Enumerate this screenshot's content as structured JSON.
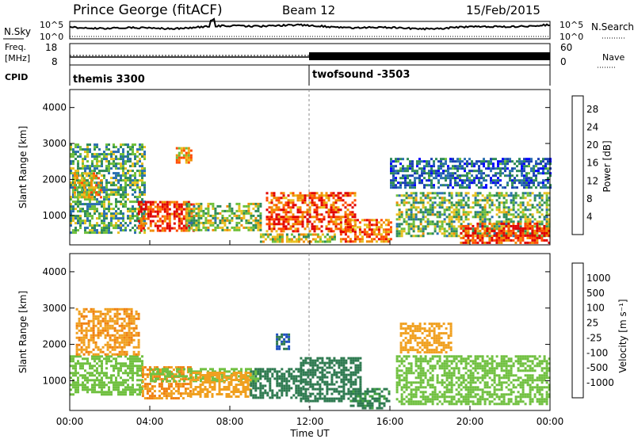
{
  "header": {
    "title": "Prince George (fitACF)",
    "beam": "Beam 12",
    "date": "15/Feb/2015"
  },
  "side_labels": {
    "nsky": "N.Sky",
    "nsearch": "N.Search",
    "freq_top": "Freq.",
    "freq_unit": "[MHz]",
    "nave": "Nave",
    "cpid": "CPID"
  },
  "noise_panel": {
    "left_ticks": [
      "10^5",
      "10^0"
    ],
    "right_ticks": [
      "10^5",
      "10^0"
    ]
  },
  "freq_panel": {
    "left_ticks": [
      "18",
      "8"
    ],
    "right_ticks": [
      "60",
      "0"
    ]
  },
  "cpid_panel": {
    "modes": [
      {
        "label": "themis 3300",
        "start_hour": 0
      },
      {
        "label": "twofsound -3503",
        "start_hour": 12
      }
    ]
  },
  "colors": {
    "power": [
      "#0000ff",
      "#1a3fb5",
      "#2a6fb0",
      "#2e8b57",
      "#6fbf3a",
      "#e8c020",
      "#f08c00",
      "#ff4a00",
      "#e00000"
    ],
    "velocity": [
      "#1030b0",
      "#2050c0",
      "#2e7a50",
      "#40a040",
      "#70c040",
      "#c8c8c8",
      "#f0a020",
      "#f08010",
      "#ff5010",
      "#e00000"
    ]
  },
  "chart_data": [
    {
      "type": "heatmap",
      "title": "",
      "xlabel": "",
      "ylabel": "Slant Range [km]",
      "xlim": [
        0,
        24
      ],
      "ylim": [
        180,
        4500
      ],
      "y_ticks": [
        "1000",
        "2000",
        "3000",
        "4000"
      ],
      "colorbar": {
        "label": "Power [dB]",
        "tick_labels": [
          "4",
          "8",
          "12",
          "16",
          "20",
          "24",
          "28"
        ],
        "range": [
          0,
          31
        ]
      },
      "echo_regions": [
        {
          "t_start": 0.0,
          "t_end": 3.7,
          "range_low": 550,
          "range_high": 3000,
          "power_db": 13
        },
        {
          "t_start": 0.2,
          "t_end": 1.6,
          "range_low": 1500,
          "range_high": 2200,
          "power_db": 20
        },
        {
          "t_start": 3.4,
          "t_end": 6.2,
          "range_low": 550,
          "range_high": 1400,
          "power_db": 27
        },
        {
          "t_start": 5.3,
          "t_end": 6.1,
          "range_low": 2450,
          "range_high": 2900,
          "power_db": 21
        },
        {
          "t_start": 5.8,
          "t_end": 9.5,
          "range_low": 600,
          "range_high": 1350,
          "power_db": 16
        },
        {
          "t_start": 9.8,
          "t_end": 14.2,
          "range_low": 550,
          "range_high": 1650,
          "power_db": 26
        },
        {
          "t_start": 9.5,
          "t_end": 13.2,
          "range_low": 250,
          "range_high": 500,
          "power_db": 18
        },
        {
          "t_start": 13.5,
          "t_end": 16.0,
          "range_low": 250,
          "range_high": 900,
          "power_db": 24
        },
        {
          "t_start": 16.3,
          "t_end": 24.0,
          "range_low": 450,
          "range_high": 1650,
          "power_db": 15
        },
        {
          "t_start": 19.5,
          "t_end": 24.0,
          "range_low": 250,
          "range_high": 800,
          "power_db": 27
        },
        {
          "t_start": 16.0,
          "t_end": 24.0,
          "range_low": 1800,
          "range_high": 2600,
          "power_db": 8
        }
      ]
    },
    {
      "type": "heatmap",
      "title": "",
      "xlabel": "Time UT",
      "ylabel": "Slant Range [km]",
      "xlim": [
        0,
        24
      ],
      "ylim": [
        180,
        4500
      ],
      "x_ticks": [
        "00:00",
        "04:00",
        "08:00",
        "12:00",
        "16:00",
        "20:00",
        "00:00"
      ],
      "y_ticks": [
        "1000",
        "2000",
        "3000",
        "4000"
      ],
      "colorbar": {
        "label": "Velocity [m s⁻¹]",
        "tick_labels": [
          "1000",
          "500",
          "100",
          "25",
          "-25",
          "-100",
          "-500",
          "-1000"
        ],
        "range": [
          -1200,
          1200
        ]
      },
      "echo_regions": [
        {
          "t_start": 0.0,
          "t_end": 3.6,
          "range_low": 600,
          "range_high": 1700,
          "velocity": 0
        },
        {
          "t_start": 0.3,
          "t_end": 3.5,
          "range_low": 1700,
          "range_high": 3000,
          "velocity": -250
        },
        {
          "t_start": 3.6,
          "t_end": 6.0,
          "range_low": 500,
          "range_high": 1400,
          "velocity": -300
        },
        {
          "t_start": 4.0,
          "t_end": 9.5,
          "range_low": 1000,
          "range_high": 1350,
          "velocity": 0
        },
        {
          "t_start": 6.0,
          "t_end": 9.0,
          "range_low": 550,
          "range_high": 1250,
          "velocity": -150
        },
        {
          "t_start": 9.0,
          "t_end": 11.5,
          "range_low": 550,
          "range_high": 1350,
          "velocity": 200
        },
        {
          "t_start": 10.3,
          "t_end": 11.0,
          "range_low": 1850,
          "range_high": 2300,
          "velocity": 300
        },
        {
          "t_start": 11.5,
          "t_end": 14.5,
          "range_low": 450,
          "range_high": 1650,
          "velocity": 120
        },
        {
          "t_start": 14.0,
          "t_end": 16.0,
          "range_low": 250,
          "range_high": 800,
          "velocity": 80
        },
        {
          "t_start": 16.3,
          "t_end": 24.0,
          "range_low": 350,
          "range_high": 1700,
          "velocity": 0
        },
        {
          "t_start": 16.5,
          "t_end": 19.0,
          "range_low": 1800,
          "range_high": 2600,
          "velocity": -200
        }
      ]
    }
  ]
}
